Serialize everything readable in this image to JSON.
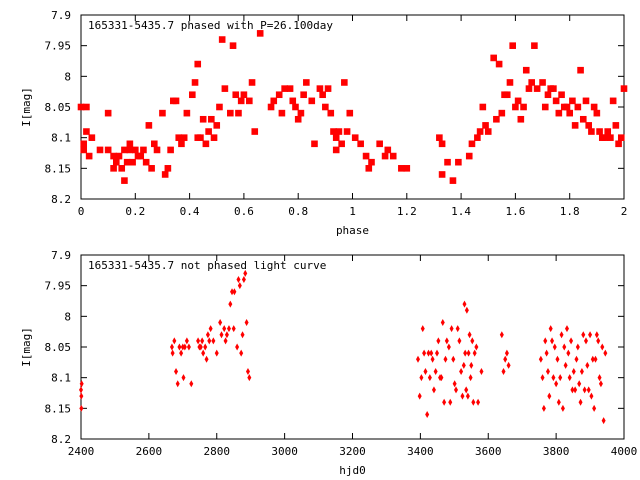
{
  "chart_data": [
    {
      "type": "scatter",
      "title": "165331-5435.7 phased with P=26.100day",
      "xlabel": "phase",
      "ylabel": "I[mag]",
      "xlim": [
        0,
        2
      ],
      "ylim": [
        8.2,
        7.9
      ],
      "y_inverted": true,
      "grid": false,
      "marker": "filled-square",
      "point_color": "#ff0000",
      "x_ticks": [
        "0",
        "0.2",
        "0.4",
        "0.6",
        "0.8",
        "1",
        "1.2",
        "1.4",
        "1.6",
        "1.8",
        "2"
      ],
      "y_ticks": [
        "7.9",
        "7.95",
        "8",
        "8.05",
        "8.1",
        "8.15",
        "8.2"
      ],
      "points": [
        [
          0.0,
          8.05
        ],
        [
          0.01,
          8.11
        ],
        [
          0.01,
          8.12
        ],
        [
          0.02,
          8.05
        ],
        [
          0.02,
          8.09
        ],
        [
          0.03,
          8.13
        ],
        [
          0.04,
          8.1
        ],
        [
          0.07,
          8.12
        ],
        [
          0.1,
          8.06
        ],
        [
          0.1,
          8.12
        ],
        [
          0.12,
          8.15
        ],
        [
          0.12,
          8.13
        ],
        [
          0.13,
          8.14
        ],
        [
          0.14,
          8.13
        ],
        [
          0.15,
          8.15
        ],
        [
          0.16,
          8.12
        ],
        [
          0.16,
          8.17
        ],
        [
          0.17,
          8.14
        ],
        [
          0.18,
          8.12
        ],
        [
          0.18,
          8.11
        ],
        [
          0.19,
          8.14
        ],
        [
          0.2,
          8.12
        ],
        [
          0.21,
          8.13
        ],
        [
          0.22,
          8.13
        ],
        [
          0.23,
          8.12
        ],
        [
          0.24,
          8.14
        ],
        [
          0.25,
          8.08
        ],
        [
          0.26,
          8.15
        ],
        [
          0.27,
          8.11
        ],
        [
          0.28,
          8.12
        ],
        [
          0.3,
          8.06
        ],
        [
          0.31,
          8.16
        ],
        [
          0.32,
          8.15
        ],
        [
          0.33,
          8.12
        ],
        [
          0.34,
          8.04
        ],
        [
          0.35,
          8.04
        ],
        [
          0.36,
          8.1
        ],
        [
          0.37,
          8.11
        ],
        [
          0.38,
          8.1
        ],
        [
          0.39,
          8.06
        ],
        [
          0.41,
          8.03
        ],
        [
          0.42,
          8.01
        ],
        [
          0.43,
          7.98
        ],
        [
          0.43,
          8.1
        ],
        [
          0.44,
          8.1
        ],
        [
          0.45,
          8.07
        ],
        [
          0.46,
          8.11
        ],
        [
          0.47,
          8.09
        ],
        [
          0.48,
          8.07
        ],
        [
          0.49,
          8.1
        ],
        [
          0.5,
          8.08
        ],
        [
          0.51,
          8.05
        ],
        [
          0.52,
          7.94
        ],
        [
          0.53,
          8.02
        ],
        [
          0.55,
          8.06
        ],
        [
          0.56,
          7.95
        ],
        [
          0.57,
          8.03
        ],
        [
          0.58,
          8.06
        ],
        [
          0.59,
          8.04
        ],
        [
          0.6,
          8.03
        ],
        [
          0.62,
          8.04
        ],
        [
          0.63,
          8.01
        ],
        [
          0.64,
          8.09
        ],
        [
          0.66,
          7.93
        ],
        [
          0.7,
          8.05
        ],
        [
          0.71,
          8.04
        ],
        [
          0.73,
          8.03
        ],
        [
          0.74,
          8.06
        ],
        [
          0.75,
          8.02
        ],
        [
          0.77,
          8.02
        ],
        [
          0.78,
          8.04
        ],
        [
          0.79,
          8.05
        ],
        [
          0.8,
          8.07
        ],
        [
          0.81,
          8.06
        ],
        [
          0.82,
          8.03
        ],
        [
          0.83,
          8.01
        ],
        [
          0.85,
          8.04
        ],
        [
          0.86,
          8.11
        ],
        [
          0.88,
          8.02
        ],
        [
          0.89,
          8.03
        ],
        [
          0.9,
          8.05
        ],
        [
          0.91,
          8.02
        ],
        [
          0.92,
          8.06
        ],
        [
          0.93,
          8.09
        ],
        [
          0.94,
          8.1
        ],
        [
          0.94,
          8.12
        ],
        [
          0.95,
          8.09
        ],
        [
          0.96,
          8.11
        ],
        [
          0.97,
          8.01
        ],
        [
          0.98,
          8.09
        ],
        [
          0.99,
          8.06
        ],
        [
          1.01,
          8.1
        ],
        [
          1.03,
          8.11
        ],
        [
          1.05,
          8.13
        ],
        [
          1.06,
          8.15
        ],
        [
          1.07,
          8.14
        ],
        [
          1.1,
          8.11
        ],
        [
          1.12,
          8.13
        ],
        [
          1.13,
          8.12
        ],
        [
          1.15,
          8.13
        ],
        [
          1.18,
          8.15
        ],
        [
          1.2,
          8.15
        ],
        [
          1.32,
          8.1
        ],
        [
          1.33,
          8.11
        ],
        [
          1.33,
          8.16
        ],
        [
          1.35,
          8.14
        ],
        [
          1.37,
          8.17
        ],
        [
          1.39,
          8.14
        ],
        [
          1.43,
          8.13
        ],
        [
          1.44,
          8.11
        ],
        [
          1.46,
          8.1
        ],
        [
          1.47,
          8.09
        ],
        [
          1.48,
          8.05
        ],
        [
          1.49,
          8.08
        ],
        [
          1.5,
          8.09
        ],
        [
          1.52,
          7.97
        ],
        [
          1.53,
          8.07
        ],
        [
          1.54,
          7.98
        ],
        [
          1.55,
          8.06
        ],
        [
          1.56,
          8.03
        ],
        [
          1.57,
          8.03
        ],
        [
          1.58,
          8.01
        ],
        [
          1.59,
          7.95
        ],
        [
          1.6,
          8.05
        ],
        [
          1.61,
          8.04
        ],
        [
          1.62,
          8.07
        ],
        [
          1.63,
          8.05
        ],
        [
          1.64,
          7.99
        ],
        [
          1.65,
          8.02
        ],
        [
          1.66,
          8.01
        ],
        [
          1.67,
          7.95
        ],
        [
          1.68,
          8.02
        ],
        [
          1.7,
          8.01
        ],
        [
          1.71,
          8.05
        ],
        [
          1.72,
          8.03
        ],
        [
          1.73,
          8.02
        ],
        [
          1.74,
          8.02
        ],
        [
          1.75,
          8.04
        ],
        [
          1.76,
          8.06
        ],
        [
          1.77,
          8.03
        ],
        [
          1.78,
          8.05
        ],
        [
          1.79,
          8.05
        ],
        [
          1.8,
          8.06
        ],
        [
          1.81,
          8.04
        ],
        [
          1.82,
          8.08
        ],
        [
          1.83,
          8.05
        ],
        [
          1.84,
          7.99
        ],
        [
          1.85,
          8.07
        ],
        [
          1.86,
          8.04
        ],
        [
          1.87,
          8.08
        ],
        [
          1.88,
          8.09
        ],
        [
          1.89,
          8.05
        ],
        [
          1.9,
          8.06
        ],
        [
          1.91,
          8.09
        ],
        [
          1.92,
          8.1
        ],
        [
          1.93,
          8.1
        ],
        [
          1.94,
          8.09
        ],
        [
          1.95,
          8.1
        ],
        [
          1.96,
          8.04
        ],
        [
          1.97,
          8.08
        ],
        [
          1.98,
          8.11
        ],
        [
          1.99,
          8.1
        ],
        [
          2.0,
          8.02
        ]
      ]
    },
    {
      "type": "scatter",
      "title": "165331-5435.7 not phased light curve",
      "xlabel": "hjd0",
      "ylabel": "I[mag]",
      "xlim": [
        2400,
        4000
      ],
      "ylim": [
        8.2,
        7.9
      ],
      "y_inverted": true,
      "grid": false,
      "marker": "filled-diamond",
      "point_color": "#ff0000",
      "x_ticks": [
        "2400",
        "2600",
        "2800",
        "3000",
        "3200",
        "3400",
        "3600",
        "3800",
        "4000"
      ],
      "y_ticks": [
        "7.9",
        "7.95",
        "8",
        "8.05",
        "8.1",
        "8.15",
        "8.2"
      ],
      "points": [
        [
          2400,
          8.12
        ],
        [
          2401,
          8.13
        ],
        [
          2401,
          8.15
        ],
        [
          2402,
          8.11
        ],
        [
          2668,
          8.05
        ],
        [
          2670,
          8.06
        ],
        [
          2675,
          8.04
        ],
        [
          2680,
          8.09
        ],
        [
          2685,
          8.11
        ],
        [
          2690,
          8.05
        ],
        [
          2695,
          8.06
        ],
        [
          2700,
          8.05
        ],
        [
          2702,
          8.1
        ],
        [
          2706,
          8.05
        ],
        [
          2712,
          8.04
        ],
        [
          2718,
          8.05
        ],
        [
          2725,
          8.11
        ],
        [
          2745,
          8.04
        ],
        [
          2749,
          8.05
        ],
        [
          2753,
          8.05
        ],
        [
          2757,
          8.04
        ],
        [
          2760,
          8.06
        ],
        [
          2766,
          8.05
        ],
        [
          2770,
          8.07
        ],
        [
          2774,
          8.03
        ],
        [
          2778,
          8.04
        ],
        [
          2782,
          8.02
        ],
        [
          2790,
          8.04
        ],
        [
          2800,
          8.06
        ],
        [
          2810,
          8.01
        ],
        [
          2814,
          8.03
        ],
        [
          2822,
          8.02
        ],
        [
          2826,
          8.04
        ],
        [
          2830,
          8.03
        ],
        [
          2836,
          8.02
        ],
        [
          2840,
          7.98
        ],
        [
          2845,
          7.96
        ],
        [
          2850,
          8.02
        ],
        [
          2852,
          7.96
        ],
        [
          2860,
          8.05
        ],
        [
          2864,
          7.94
        ],
        [
          2868,
          7.95
        ],
        [
          2872,
          8.06
        ],
        [
          2876,
          8.03
        ],
        [
          2880,
          7.94
        ],
        [
          2884,
          7.93
        ],
        [
          2888,
          8.01
        ],
        [
          2892,
          8.09
        ],
        [
          2896,
          8.1
        ],
        [
          3393,
          8.07
        ],
        [
          3398,
          8.13
        ],
        [
          3403,
          8.1
        ],
        [
          3407,
          8.02
        ],
        [
          3411,
          8.06
        ],
        [
          3415,
          8.09
        ],
        [
          3420,
          8.16
        ],
        [
          3424,
          8.06
        ],
        [
          3428,
          8.1
        ],
        [
          3432,
          8.06
        ],
        [
          3436,
          8.07
        ],
        [
          3440,
          8.12
        ],
        [
          3445,
          8.09
        ],
        [
          3449,
          8.06
        ],
        [
          3453,
          8.04
        ],
        [
          3458,
          8.1
        ],
        [
          3462,
          8.1
        ],
        [
          3466,
          8.01
        ],
        [
          3470,
          8.14
        ],
        [
          3474,
          8.07
        ],
        [
          3478,
          8.04
        ],
        [
          3484,
          8.05
        ],
        [
          3488,
          8.14
        ],
        [
          3492,
          8.02
        ],
        [
          3497,
          8.07
        ],
        [
          3501,
          8.11
        ],
        [
          3505,
          8.12
        ],
        [
          3510,
          8.02
        ],
        [
          3515,
          8.04
        ],
        [
          3520,
          8.09
        ],
        [
          3524,
          8.13
        ],
        [
          3528,
          8.08
        ],
        [
          3530,
          7.98
        ],
        [
          3532,
          8.06
        ],
        [
          3535,
          8.12
        ],
        [
          3537,
          7.99
        ],
        [
          3540,
          8.13
        ],
        [
          3542,
          8.06
        ],
        [
          3545,
          8.03
        ],
        [
          3548,
          8.1
        ],
        [
          3550,
          8.08
        ],
        [
          3553,
          8.04
        ],
        [
          3556,
          8.14
        ],
        [
          3560,
          8.06
        ],
        [
          3565,
          8.05
        ],
        [
          3570,
          8.14
        ],
        [
          3580,
          8.09
        ],
        [
          3640,
          8.03
        ],
        [
          3645,
          8.09
        ],
        [
          3650,
          8.07
        ],
        [
          3655,
          8.06
        ],
        [
          3660,
          8.08
        ],
        [
          3755,
          8.07
        ],
        [
          3760,
          8.1
        ],
        [
          3764,
          8.15
        ],
        [
          3768,
          8.04
        ],
        [
          3772,
          8.06
        ],
        [
          3776,
          8.09
        ],
        [
          3780,
          8.13
        ],
        [
          3784,
          8.02
        ],
        [
          3788,
          8.04
        ],
        [
          3792,
          8.1
        ],
        [
          3796,
          8.05
        ],
        [
          3800,
          8.11
        ],
        [
          3804,
          8.07
        ],
        [
          3808,
          8.14
        ],
        [
          3812,
          8.1
        ],
        [
          3816,
          8.03
        ],
        [
          3820,
          8.15
        ],
        [
          3824,
          8.05
        ],
        [
          3828,
          8.08
        ],
        [
          3832,
          8.02
        ],
        [
          3836,
          8.06
        ],
        [
          3840,
          8.1
        ],
        [
          3844,
          8.04
        ],
        [
          3848,
          8.12
        ],
        [
          3852,
          8.09
        ],
        [
          3856,
          8.12
        ],
        [
          3860,
          8.07
        ],
        [
          3864,
          8.05
        ],
        [
          3868,
          8.11
        ],
        [
          3872,
          8.14
        ],
        [
          3876,
          8.09
        ],
        [
          3880,
          8.03
        ],
        [
          3884,
          8.12
        ],
        [
          3888,
          8.04
        ],
        [
          3892,
          8.08
        ],
        [
          3896,
          8.12
        ],
        [
          3900,
          8.03
        ],
        [
          3904,
          8.13
        ],
        [
          3908,
          8.07
        ],
        [
          3912,
          8.15
        ],
        [
          3916,
          8.07
        ],
        [
          3920,
          8.03
        ],
        [
          3924,
          8.04
        ],
        [
          3928,
          8.1
        ],
        [
          3932,
          8.11
        ],
        [
          3936,
          8.05
        ],
        [
          3940,
          8.17
        ],
        [
          3945,
          8.06
        ]
      ]
    }
  ]
}
